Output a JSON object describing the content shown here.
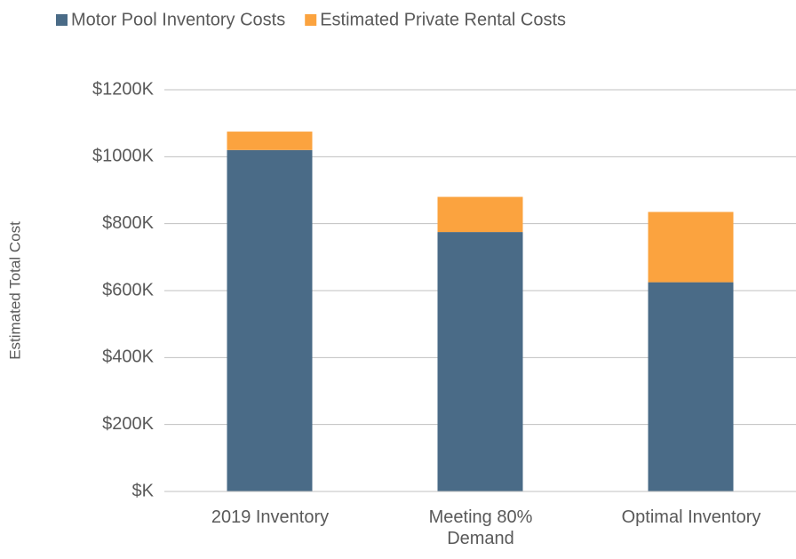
{
  "chart_data": {
    "type": "stacked_bar",
    "y_label": "Estimated Total Cost",
    "categories": [
      "2019 Inventory",
      "Meeting 80%\nDemand",
      "Optimal Inventory"
    ],
    "series": [
      {
        "name": "Motor Pool Inventory Costs",
        "color": "#4a6b87",
        "values": [
          1020,
          775,
          625
        ]
      },
      {
        "name": "Estimated Private Rental Costs",
        "color": "#fba33f",
        "values": [
          55,
          105,
          210
        ]
      }
    ],
    "ylim": [
      0,
      1200
    ],
    "yticks": [
      {
        "value": 0,
        "label": "$K"
      },
      {
        "value": 200,
        "label": "$200K"
      },
      {
        "value": 400,
        "label": "$400K"
      },
      {
        "value": 600,
        "label": "$600K"
      },
      {
        "value": 800,
        "label": "$800K"
      },
      {
        "value": 1000,
        "label": "$1000K"
      },
      {
        "value": 1200,
        "label": "$1200K"
      }
    ],
    "grid": true
  }
}
